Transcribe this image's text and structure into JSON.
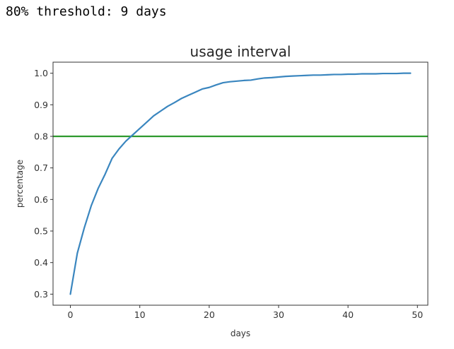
{
  "output": {
    "text": "80% threshold: 9 days"
  },
  "chart_data": {
    "type": "line",
    "title": "usage interval",
    "xlabel": "days",
    "ylabel": "percentage",
    "xlim": [
      -2.5,
      51.5
    ],
    "ylim": [
      0.265,
      1.035
    ],
    "xticks": [
      0,
      10,
      20,
      30,
      40,
      50
    ],
    "yticks": [
      0.3,
      0.4,
      0.5,
      0.6,
      0.7,
      0.8,
      0.9,
      1.0
    ],
    "ytick_labels": [
      "0.3",
      "0.4",
      "0.5",
      "0.6",
      "0.7",
      "0.8",
      "0.9",
      "1.0"
    ],
    "grid": false,
    "series": [
      {
        "color": "#3a86bf",
        "x": [
          0,
          1,
          2,
          3,
          4,
          5,
          6,
          7,
          8,
          9,
          10,
          11,
          12,
          13,
          14,
          15,
          16,
          17,
          18,
          19,
          20,
          21,
          22,
          23,
          24,
          25,
          26,
          27,
          28,
          29,
          30,
          31,
          32,
          33,
          34,
          35,
          36,
          37,
          38,
          39,
          40,
          41,
          42,
          43,
          44,
          45,
          46,
          47,
          48,
          49
        ],
        "y": [
          0.3,
          0.43,
          0.51,
          0.58,
          0.635,
          0.68,
          0.73,
          0.76,
          0.785,
          0.805,
          0.825,
          0.845,
          0.865,
          0.88,
          0.895,
          0.907,
          0.92,
          0.93,
          0.94,
          0.95,
          0.955,
          0.963,
          0.97,
          0.973,
          0.975,
          0.977,
          0.978,
          0.982,
          0.985,
          0.986,
          0.988,
          0.99,
          0.991,
          0.992,
          0.993,
          0.994,
          0.994,
          0.995,
          0.996,
          0.996,
          0.997,
          0.997,
          0.998,
          0.998,
          0.998,
          0.999,
          0.999,
          0.999,
          1.0,
          1.0
        ]
      }
    ],
    "hlines": [
      {
        "y": 0.8,
        "color": "#2e9a2e"
      }
    ]
  }
}
